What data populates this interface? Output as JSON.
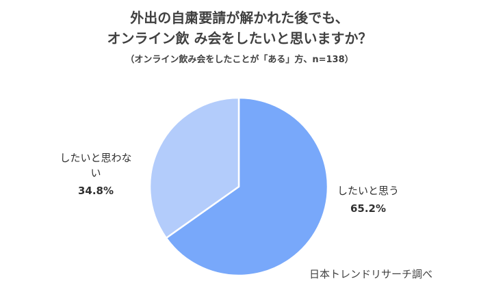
{
  "title_line1": "外出の自粛要請が解かれた後でも、",
  "title_line2": "オンライン飲 み会をしたいと思いますか？",
  "subtitle": "（オンライン飲み会をしたことが「ある」方、n=138）",
  "source": "日本トレンドリサーチ調べ",
  "chart_data": {
    "type": "pie",
    "categories": [
      "したいと思う",
      "したいと思わない"
    ],
    "values": [
      65.2,
      34.8
    ],
    "value_labels": [
      "65.2%",
      "34.8%"
    ],
    "colors": [
      "#78A8FA",
      "#B3CCFB"
    ]
  },
  "labels": {
    "left_name_line1": "したいと思わな",
    "left_name_line2": "い",
    "right_name": "したいと思う"
  }
}
